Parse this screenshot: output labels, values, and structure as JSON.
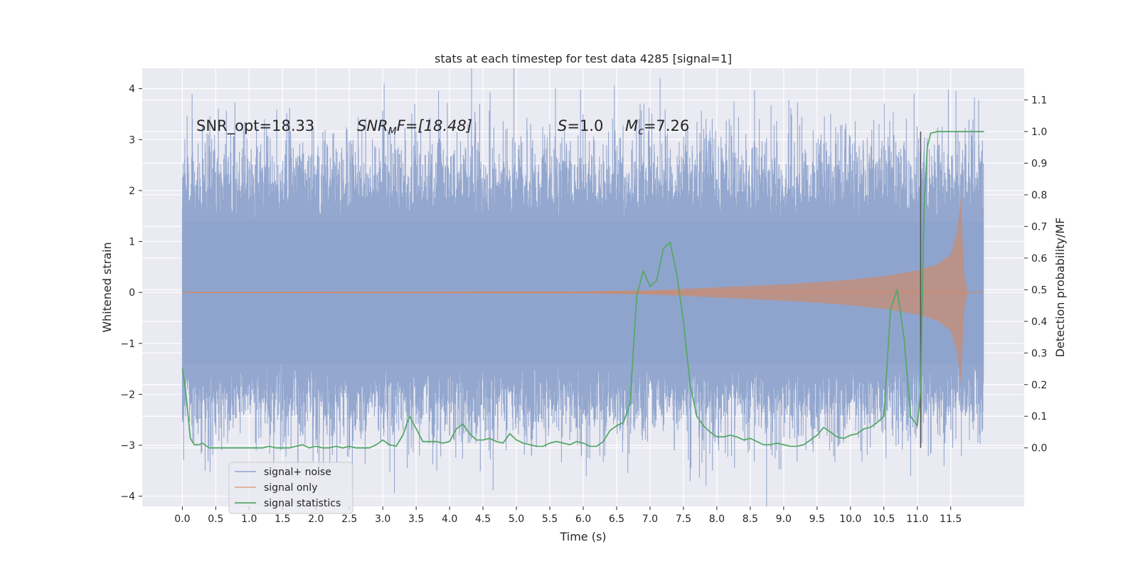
{
  "chart_data": {
    "type": "line",
    "title": "stats at each timestep for test data 4285 [signal=1]",
    "xlabel": "Time (s)",
    "ylabel": "Whitened strain",
    "ylabel_right": "Detection probability/MF",
    "xlim": [
      -0.6,
      12.6
    ],
    "ylim": [
      -4.2,
      4.4
    ],
    "ylim_right": [
      -0.185,
      1.2
    ],
    "x_ticks": [
      "0.0",
      "0.5",
      "1.0",
      "1.5",
      "2.0",
      "2.5",
      "3.0",
      "3.5",
      "4.0",
      "4.5",
      "5.0",
      "5.5",
      "6.0",
      "6.5",
      "7.0",
      "7.5",
      "8.0",
      "8.5",
      "9.0",
      "9.5",
      "10.0",
      "10.5",
      "11.0",
      "11.5"
    ],
    "y_ticks": [
      "−4",
      "−3",
      "−2",
      "−1",
      "0",
      "1",
      "2",
      "3",
      "4"
    ],
    "y_ticks_right": [
      "0.0",
      "0.1",
      "0.2",
      "0.3",
      "0.4",
      "0.5",
      "0.6",
      "0.7",
      "0.8",
      "0.9",
      "1.0",
      "1.1"
    ],
    "grid": true,
    "legend_position": "lower-left",
    "colors": {
      "background": "#eaeaf2",
      "grid": "#ffffff",
      "noise": "#8ea3cc",
      "signal": "#dd8452",
      "stat": "#55a868",
      "marker": "#555555"
    },
    "annotations": {
      "snr_opt": "SNR_opt=18.33",
      "snr_mf_sym": "SNR",
      "snr_mf_sub": "M",
      "snr_mf_rest": "F=[18.48]",
      "s_sym": "S",
      "s_rest": "=1.0",
      "mc_sym": "M",
      "mc_sub": "c",
      "mc_rest": "=7.26"
    },
    "marker_line_x": 11.05,
    "series": [
      {
        "name": "signal+ noise",
        "x_range": [
          0.0,
          11.99
        ],
        "envelope": [
          1.4,
          -1.4
        ],
        "notable_peaks": [
          {
            "x": 0.15,
            "y": 3.4
          },
          {
            "x": 3.02,
            "y": 4.1
          },
          {
            "x": 4.45,
            "y": 3.7
          },
          {
            "x": 11.58,
            "y": 3.95
          },
          {
            "x": 3.55,
            "y": -3.2
          },
          {
            "x": 7.6,
            "y": -3.7
          },
          {
            "x": 10.9,
            "y": -3.6
          },
          {
            "x": 11.4,
            "y": -3.4
          }
        ]
      },
      {
        "name": "signal only",
        "x_range": [
          0.0,
          11.99
        ],
        "amplitude_envelope": {
          "x": [
            0.0,
            6.0,
            7.0,
            7.5,
            8.0,
            8.5,
            9.0,
            9.5,
            10.0,
            10.5,
            11.0,
            11.3,
            11.5,
            11.6,
            11.65,
            11.7,
            11.75
          ],
          "y": [
            0.01,
            0.02,
            0.04,
            0.07,
            0.1,
            0.13,
            0.16,
            0.2,
            0.25,
            0.32,
            0.43,
            0.55,
            0.75,
            1.2,
            1.9,
            0.4,
            0.02
          ]
        }
      },
      {
        "name": "signal statistics",
        "x": [
          0.0,
          0.05,
          0.12,
          0.18,
          0.25,
          0.3,
          0.4,
          0.5,
          0.6,
          0.7,
          0.8,
          0.9,
          1.0,
          1.1,
          1.2,
          1.3,
          1.4,
          1.5,
          1.6,
          1.7,
          1.8,
          1.9,
          2.0,
          2.1,
          2.2,
          2.3,
          2.4,
          2.5,
          2.6,
          2.7,
          2.8,
          2.9,
          3.0,
          3.1,
          3.2,
          3.3,
          3.4,
          3.5,
          3.6,
          3.7,
          3.8,
          3.9,
          4.0,
          4.1,
          4.2,
          4.3,
          4.4,
          4.5,
          4.6,
          4.7,
          4.8,
          4.9,
          5.0,
          5.1,
          5.2,
          5.3,
          5.4,
          5.5,
          5.6,
          5.7,
          5.8,
          5.9,
          6.0,
          6.1,
          6.2,
          6.3,
          6.4,
          6.5,
          6.6,
          6.7,
          6.8,
          6.9,
          7.0,
          7.1,
          7.2,
          7.3,
          7.4,
          7.5,
          7.6,
          7.7,
          7.8,
          7.9,
          8.0,
          8.1,
          8.2,
          8.3,
          8.4,
          8.5,
          8.6,
          8.7,
          8.8,
          8.9,
          9.0,
          9.1,
          9.2,
          9.3,
          9.4,
          9.5,
          9.6,
          9.7,
          9.8,
          9.9,
          10.0,
          10.1,
          10.2,
          10.3,
          10.4,
          10.5,
          10.6,
          10.7,
          10.8,
          10.9,
          11.0,
          11.05,
          11.1,
          11.15,
          11.2,
          11.3,
          11.5,
          11.7,
          11.9,
          12.0
        ],
        "y": [
          0.25,
          0.18,
          0.03,
          0.01,
          0.01,
          0.015,
          0.0,
          0.0,
          0.0,
          0.0,
          0.0,
          0.0,
          0.0,
          0.0,
          0.0,
          0.005,
          0.0,
          0.0,
          0.0,
          0.005,
          0.01,
          0.0,
          0.005,
          0.0,
          0.0,
          0.005,
          0.0,
          0.005,
          0.0,
          0.0,
          0.0,
          0.01,
          0.025,
          0.01,
          0.005,
          0.04,
          0.1,
          0.06,
          0.02,
          0.02,
          0.02,
          0.015,
          0.02,
          0.06,
          0.075,
          0.045,
          0.025,
          0.025,
          0.03,
          0.02,
          0.015,
          0.045,
          0.025,
          0.015,
          0.01,
          0.005,
          0.005,
          0.015,
          0.02,
          0.015,
          0.01,
          0.02,
          0.015,
          0.005,
          0.005,
          0.02,
          0.055,
          0.07,
          0.08,
          0.14,
          0.48,
          0.56,
          0.51,
          0.53,
          0.63,
          0.65,
          0.55,
          0.4,
          0.2,
          0.1,
          0.07,
          0.05,
          0.035,
          0.035,
          0.04,
          0.035,
          0.025,
          0.03,
          0.02,
          0.01,
          0.01,
          0.015,
          0.01,
          0.005,
          0.005,
          0.01,
          0.025,
          0.04,
          0.065,
          0.05,
          0.035,
          0.03,
          0.04,
          0.045,
          0.06,
          0.065,
          0.08,
          0.1,
          0.44,
          0.5,
          0.35,
          0.1,
          0.07,
          0.18,
          0.75,
          0.95,
          0.995,
          1.0,
          1.0,
          1.0,
          1.0,
          1.0
        ]
      }
    ]
  }
}
